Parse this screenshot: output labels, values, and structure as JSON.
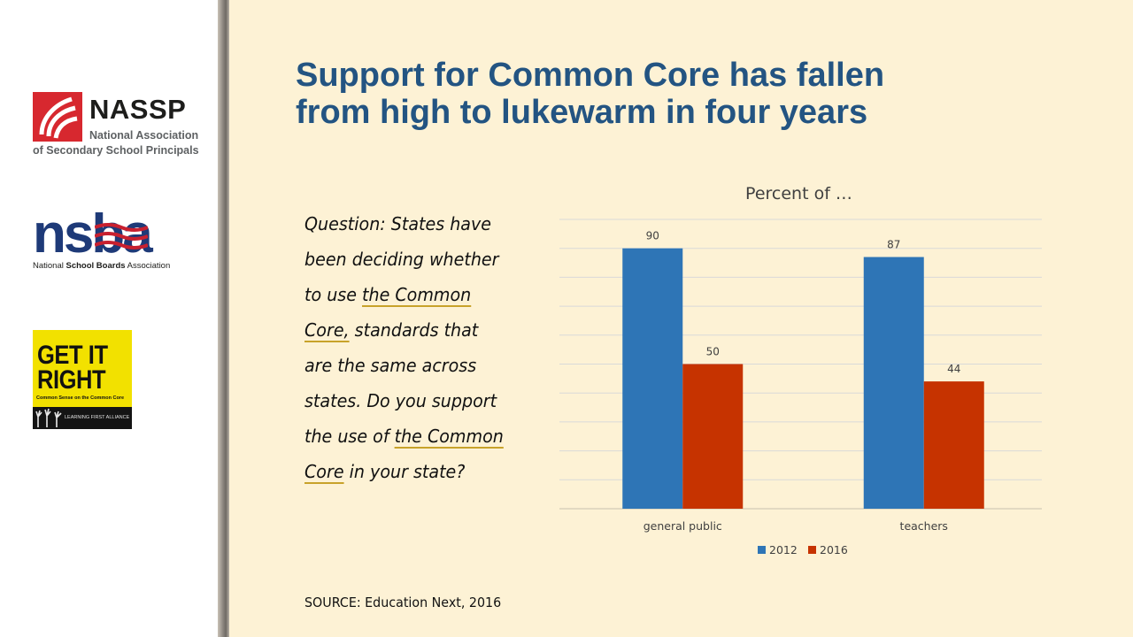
{
  "logos": {
    "nassp": {
      "name": "NASSP",
      "line1": "National Association",
      "line2": "of Secondary School Principals"
    },
    "nsba": {
      "word": "nsba",
      "tag_pre": "National ",
      "tag_bold": "School Boards",
      "tag_post": " Association"
    },
    "gir": {
      "line1": "GET IT",
      "line2": "RIGHT",
      "sub": "Common Sense on the Common Core",
      "band": "LEARNING FIRST ALLIANCE"
    }
  },
  "slide": {
    "title_line1": "Support for Common Core has fallen",
    "title_line2": "from high to lukewarm in four years",
    "question": {
      "p1": "Question: States have been deciding whether to use ",
      "h1": "the Common Core,",
      "p2": " standards that are the same across states. Do you support the use of ",
      "h2": "the Common Core",
      "p3": " in your state?"
    },
    "source": "SOURCE: Education Next, 2016"
  },
  "colors": {
    "title": "#235482",
    "series_2012": "#2e75b6",
    "series_2016": "#c63300",
    "background": "#fdf2d5"
  },
  "chart_data": {
    "type": "bar",
    "title": "Percent of …",
    "categories": [
      "general public",
      "teachers"
    ],
    "series": [
      {
        "name": "2012",
        "values": [
          90,
          87
        ]
      },
      {
        "name": "2016",
        "values": [
          50,
          44
        ]
      }
    ],
    "ylim": [
      0,
      100
    ],
    "grid": true,
    "legend": "bottom",
    "data_labels": true
  }
}
